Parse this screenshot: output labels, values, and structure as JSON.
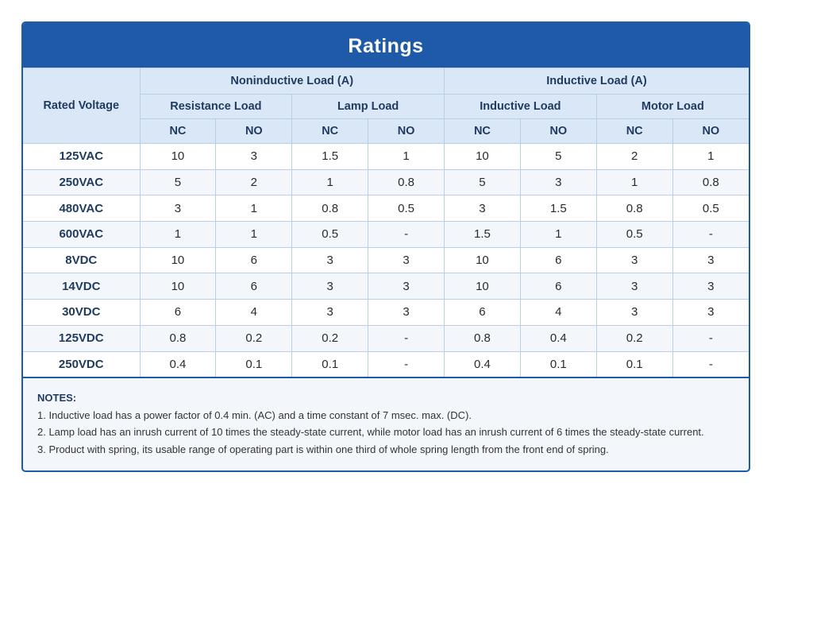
{
  "title": "Ratings",
  "table": {
    "header": {
      "rated_voltage": "Rated Voltage",
      "groups": [
        {
          "label": "Noninductive Load (A)",
          "subgroups": [
            "Resistance Load",
            "Lamp Load"
          ]
        },
        {
          "label": "Inductive Load (A)",
          "subgroups": [
            "Inductive Load",
            "Motor Load"
          ]
        }
      ],
      "contacts": [
        "NC",
        "NO",
        "NC",
        "NO",
        "NC",
        "NO",
        "NC",
        "NO"
      ]
    },
    "rows": [
      {
        "voltage": "125VAC",
        "values": [
          "10",
          "3",
          "1.5",
          "1",
          "10",
          "5",
          "2",
          "1"
        ]
      },
      {
        "voltage": "250VAC",
        "values": [
          "5",
          "2",
          "1",
          "0.8",
          "5",
          "3",
          "1",
          "0.8"
        ]
      },
      {
        "voltage": "480VAC",
        "values": [
          "3",
          "1",
          "0.8",
          "0.5",
          "3",
          "1.5",
          "0.8",
          "0.5"
        ]
      },
      {
        "voltage": "600VAC",
        "values": [
          "1",
          "1",
          "0.5",
          "-",
          "1.5",
          "1",
          "0.5",
          "-"
        ]
      },
      {
        "voltage": "8VDC",
        "values": [
          "10",
          "6",
          "3",
          "3",
          "10",
          "6",
          "3",
          "3"
        ]
      },
      {
        "voltage": "14VDC",
        "values": [
          "10",
          "6",
          "3",
          "3",
          "10",
          "6",
          "3",
          "3"
        ]
      },
      {
        "voltage": "30VDC",
        "values": [
          "6",
          "4",
          "3",
          "3",
          "6",
          "4",
          "3",
          "3"
        ]
      },
      {
        "voltage": "125VDC",
        "values": [
          "0.8",
          "0.2",
          "0.2",
          "-",
          "0.8",
          "0.4",
          "0.2",
          "-"
        ]
      },
      {
        "voltage": "250VDC",
        "values": [
          "0.4",
          "0.1",
          "0.1",
          "-",
          "0.4",
          "0.1",
          "0.1",
          "-"
        ]
      }
    ]
  },
  "notes": {
    "heading": "NOTES:",
    "items": [
      "1. Inductive load has a power factor of 0.4 min. (AC) and a time constant of 7 msec. max. (DC).",
      "2. Lamp load has an inrush current of 10 times the steady-state current, while motor load has an inrush current of 6 times the steady-state current.",
      "3. Product with spring, its usable range of operating part is within one third of whole spring length from the front end of spring."
    ]
  }
}
